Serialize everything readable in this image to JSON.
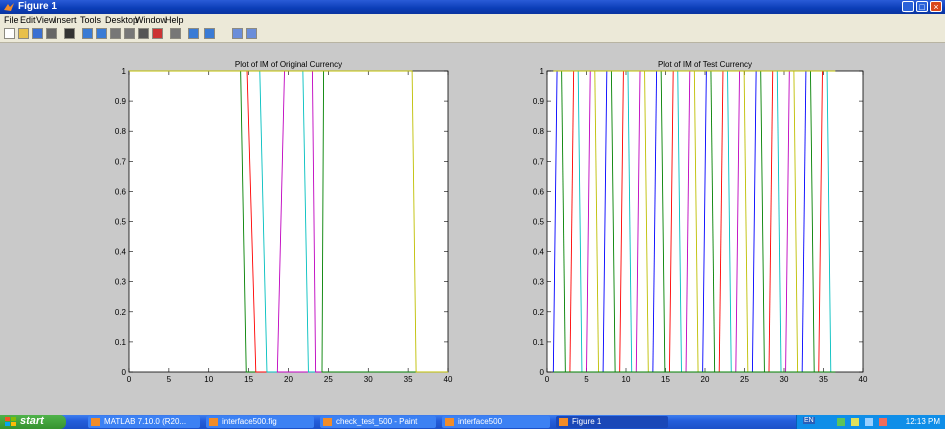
{
  "window": {
    "title": "Figure 1"
  },
  "menu": [
    "File",
    "Edit",
    "View",
    "Insert",
    "Tools",
    "Desktop",
    "Window",
    "Help"
  ],
  "toolbar_icons": [
    "new-figure-icon",
    "open-icon",
    "save-icon",
    "print-icon",
    "pointer-icon",
    "zoom-in-icon",
    "zoom-out-icon",
    "pan-icon",
    "rotate-icon",
    "data-cursor-icon",
    "brush-icon",
    "link-icon",
    "colorbar-icon",
    "legend-icon",
    "hide-plot-tools-icon",
    "show-plot-tools-icon"
  ],
  "colors": {
    "series": [
      "#0000ff",
      "#008000",
      "#ff0000",
      "#00bfbf",
      "#bf00bf",
      "#bfbf00"
    ]
  },
  "chart_data": [
    {
      "type": "line",
      "title": "Plot of IM of Original Currency",
      "xlim": [
        0,
        40
      ],
      "ylim": [
        0,
        1
      ],
      "xticks": [
        "0",
        "5",
        "10",
        "15",
        "20",
        "25",
        "30",
        "35",
        "40"
      ],
      "yticks": [
        "0",
        "0.1",
        "0.2",
        "0.3",
        "0.4",
        "0.5",
        "0.6",
        "0.7",
        "0.8",
        "0.9",
        "1"
      ],
      "grid": false,
      "series": [
        {
          "color": "#008000",
          "x": [
            0,
            14.0,
            14.7,
            40
          ],
          "y": [
            1,
            1,
            0,
            0
          ]
        },
        {
          "color": "#ff0000",
          "x": [
            0,
            14.8,
            15.9,
            40
          ],
          "y": [
            1,
            1,
            0,
            0
          ]
        },
        {
          "color": "#00bfbf",
          "x": [
            0,
            16.4,
            17.3,
            40
          ],
          "y": [
            1,
            1,
            0,
            0
          ]
        },
        {
          "color": "#bf00bf",
          "x": [
            0,
            19.5,
            18.6,
            40
          ],
          "y": [
            1,
            1,
            0,
            0
          ]
        },
        {
          "color": "#00bfbf",
          "x": [
            0,
            21.8,
            22.5,
            40
          ],
          "y": [
            1,
            1,
            0,
            0
          ]
        },
        {
          "color": "#bf00bf",
          "x": [
            0,
            23.0,
            23.4,
            40
          ],
          "y": [
            1,
            1,
            0,
            0
          ]
        },
        {
          "color": "#008000",
          "x": [
            0,
            24.4,
            24.2,
            40
          ],
          "y": [
            1,
            1,
            0,
            0
          ]
        },
        {
          "color": "#bfbf00",
          "x": [
            0,
            35.5,
            36.0,
            40
          ],
          "y": [
            1,
            1,
            0,
            0
          ]
        }
      ]
    },
    {
      "type": "line",
      "title": "Plot of IM of Test Currency",
      "xlim": [
        0,
        40
      ],
      "ylim": [
        0,
        1
      ],
      "xticks": [
        "0",
        "5",
        "10",
        "15",
        "20",
        "25",
        "30",
        "35",
        "40"
      ],
      "yticks": [
        "0",
        "0.1",
        "0.2",
        "0.3",
        "0.4",
        "0.5",
        "0.6",
        "0.7",
        "0.8",
        "0.9",
        "1"
      ],
      "grid": false,
      "square_wave": {
        "first_edge": 0.8,
        "last_edge": 36,
        "period": 1.05,
        "colors": [
          "#0000ff",
          "#008000",
          "#ff0000",
          "#00bfbf",
          "#bf00bf",
          "#bfbf00"
        ]
      }
    }
  ],
  "taskbar": {
    "start_label": "start",
    "tasks": [
      {
        "label": "MATLAB 7.10.0 (R20...",
        "active": false
      },
      {
        "label": "interface500.fig",
        "active": false
      },
      {
        "label": "check_test_500 - Paint",
        "active": false
      },
      {
        "label": "interface500",
        "active": false
      },
      {
        "label": "Figure 1",
        "active": true
      }
    ],
    "tray_lang": "EN",
    "clock": "12:13 PM"
  }
}
